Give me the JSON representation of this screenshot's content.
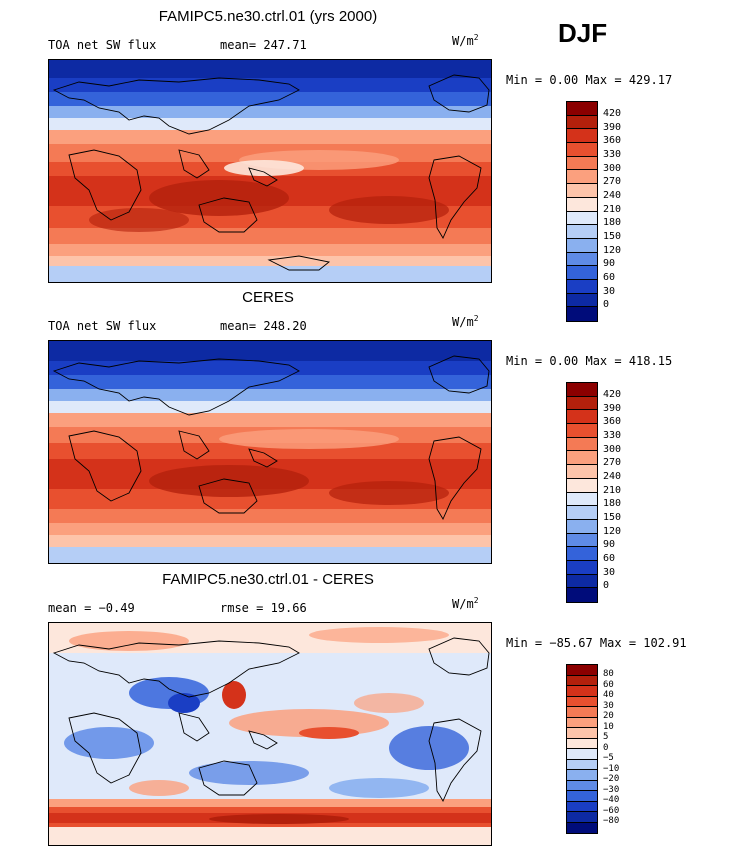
{
  "season": "DJF",
  "units": {
    "base": "W/m",
    "sup": "2"
  },
  "panels": [
    {
      "title": "FAMIPC5.ne30.ctrl.01 (yrs 2000)",
      "label": "TOA net SW flux",
      "stat": "mean= 247.71",
      "minmax": "Min =    0.00 Max = 429.17"
    },
    {
      "title": "CERES",
      "label": "TOA net SW flux",
      "stat": "mean= 248.20",
      "minmax": "Min =    0.00 Max = 418.15"
    },
    {
      "title": "FAMIPC5.ne30.ctrl.01 - CERES",
      "label": "mean =  −0.49",
      "stat": "rmse =   19.66",
      "minmax": "Min = −85.67 Max = 102.91"
    }
  ],
  "chart_data": [
    {
      "type": "heatmap",
      "title": "FAMIPC5.ne30.ctrl.01 (yrs 2000)",
      "variable": "TOA net SW flux",
      "season": "DJF",
      "units": "W/m2",
      "mean": 247.71,
      "min": 0.0,
      "max": 429.17,
      "colorbar_levels": [
        "420",
        "390",
        "360",
        "330",
        "300",
        "270",
        "240",
        "210",
        "180",
        "150",
        "120",
        "90",
        "60",
        "30",
        "0"
      ],
      "colormap": [
        "#8b0000",
        "#b3200c",
        "#d4321a",
        "#e8502f",
        "#f47a55",
        "#fba07e",
        "#fdc4aa",
        "#fde7dc",
        "#dfe9fa",
        "#b5cef6",
        "#8ab0ef",
        "#5f8be6",
        "#3463da",
        "#1a3ec4",
        "#0d2aa3",
        "#000c7a"
      ]
    },
    {
      "type": "heatmap",
      "title": "CERES",
      "variable": "TOA net SW flux",
      "season": "DJF",
      "units": "W/m2",
      "mean": 248.2,
      "min": 0.0,
      "max": 418.15,
      "colorbar_levels": [
        "420",
        "390",
        "360",
        "330",
        "300",
        "270",
        "240",
        "210",
        "180",
        "150",
        "120",
        "90",
        "60",
        "30",
        "0"
      ],
      "colormap": [
        "#8b0000",
        "#b3200c",
        "#d4321a",
        "#e8502f",
        "#f47a55",
        "#fba07e",
        "#fdc4aa",
        "#fde7dc",
        "#dfe9fa",
        "#b5cef6",
        "#8ab0ef",
        "#5f8be6",
        "#3463da",
        "#1a3ec4",
        "#0d2aa3",
        "#000c7a"
      ]
    },
    {
      "type": "heatmap",
      "title": "FAMIPC5.ne30.ctrl.01 - CERES",
      "season": "DJF",
      "units": "W/m2",
      "mean": -0.49,
      "rmse": 19.66,
      "min": -85.67,
      "max": 102.91,
      "colorbar_levels": [
        "80",
        "60",
        "40",
        "30",
        "20",
        "10",
        "5",
        "0",
        "−5",
        "−10",
        "−20",
        "−30",
        "−40",
        "−60",
        "−80"
      ],
      "colormap": [
        "#8b0000",
        "#b3200c",
        "#d4321a",
        "#e8502f",
        "#f47a55",
        "#fba07e",
        "#fdc4aa",
        "#fde7dc",
        "#dfe9fa",
        "#b5cef6",
        "#8ab0ef",
        "#5f8be6",
        "#3463da",
        "#1a3ec4",
        "#0d2aa3",
        "#000c7a"
      ]
    }
  ]
}
